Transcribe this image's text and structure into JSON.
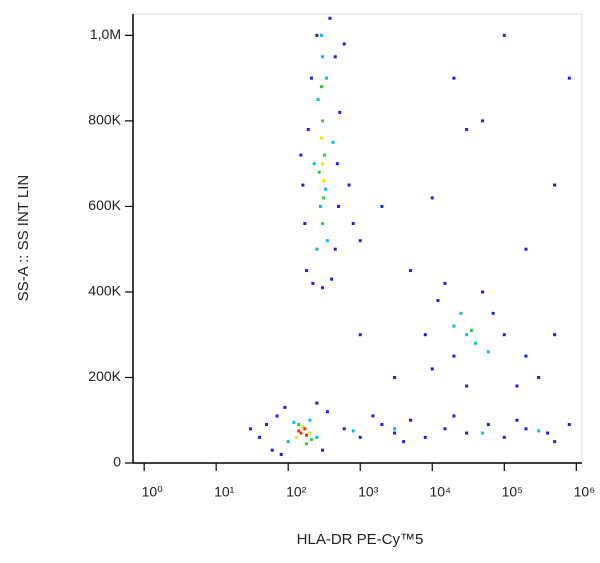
{
  "chart_data": {
    "type": "scatter",
    "x_label": "HLA-DR PE-Cy™5",
    "y_label": "SS-A :: SS INT LIN",
    "xscale": "log",
    "xlim": [
      0.7,
      1200000
    ],
    "ylim": [
      0,
      1050000
    ],
    "xticks": [
      {
        "value": 1,
        "label": "10⁰"
      },
      {
        "value": 10,
        "label": "10¹"
      },
      {
        "value": 100,
        "label": "10²"
      },
      {
        "value": 1000,
        "label": "10³"
      },
      {
        "value": 10000,
        "label": "10⁴"
      },
      {
        "value": 100000,
        "label": "10⁵"
      },
      {
        "value": 1000000,
        "label": "10⁶"
      }
    ],
    "yticks": [
      {
        "value": 0,
        "label": "0"
      },
      {
        "value": 200000,
        "label": "200K"
      },
      {
        "value": 400000,
        "label": "400K"
      },
      {
        "value": 600000,
        "label": "600K"
      },
      {
        "value": 800000,
        "label": "800K"
      },
      {
        "value": 1000000,
        "label": "1,0M"
      }
    ],
    "series": [
      {
        "color": "#1e1ee6",
        "x": [
          180,
          220,
          400,
          450,
          170,
          500,
          160,
          480,
          190,
          520,
          210,
          450,
          250,
          380,
          600,
          150,
          700,
          800,
          1000,
          300,
          40,
          60,
          70,
          90,
          50,
          300,
          350,
          30,
          80,
          250,
          600,
          1000,
          2000,
          3000,
          5000,
          8000,
          15000,
          30000,
          60000,
          100000,
          200000,
          400000,
          800000,
          1500,
          4000,
          20000,
          150000,
          500000,
          8000,
          12000,
          15000,
          20000,
          50000,
          100000,
          200000,
          300000,
          150000,
          500000,
          30000,
          10000,
          70000,
          2000,
          5000,
          20000,
          30000,
          100000,
          500000,
          50000,
          1000,
          3000,
          800000,
          10000,
          200000
        ],
        "values": [
          450000,
          420000,
          430000,
          500000,
          560000,
          600000,
          650000,
          700000,
          780000,
          820000,
          900000,
          950000,
          1000000,
          1040000,
          980000,
          720000,
          650000,
          560000,
          520000,
          410000,
          60000,
          30000,
          110000,
          130000,
          90000,
          30000,
          120000,
          80000,
          20000,
          140000,
          80000,
          60000,
          90000,
          70000,
          100000,
          60000,
          80000,
          70000,
          90000,
          60000,
          80000,
          70000,
          90000,
          110000,
          50000,
          110000,
          100000,
          50000,
          300000,
          380000,
          420000,
          250000,
          400000,
          300000,
          250000,
          200000,
          180000,
          300000,
          180000,
          220000,
          350000,
          600000,
          450000,
          900000,
          780000,
          1000000,
          650000,
          800000,
          300000,
          200000,
          900000,
          620000,
          500000
        ]
      },
      {
        "color": "#00c0f0",
        "x": [
          250,
          350,
          280,
          330,
          260,
          340,
          300,
          290,
          230,
          420,
          100,
          200,
          250,
          120,
          800,
          3000,
          50000,
          300000,
          20000,
          30000,
          40000,
          25000,
          60000
        ],
        "values": [
          500000,
          520000,
          600000,
          640000,
          850000,
          900000,
          950000,
          1000000,
          700000,
          750000,
          50000,
          100000,
          60000,
          95000,
          75000,
          80000,
          70000,
          75000,
          320000,
          300000,
          280000,
          350000,
          260000
        ]
      },
      {
        "color": "#30d030",
        "x": [
          300,
          270,
          320,
          300,
          290,
          310,
          140,
          210,
          180,
          35000
        ],
        "values": [
          560000,
          680000,
          720000,
          800000,
          880000,
          620000,
          90000,
          55000,
          45000,
          310000
        ]
      },
      {
        "color": "#e8e800",
        "x": [
          300,
          290,
          310,
          160,
          200,
          130
        ],
        "values": [
          700000,
          760000,
          660000,
          85000,
          70000,
          60000
        ]
      },
      {
        "color": "#ff2a00",
        "x": [
          150,
          180,
          140,
          170
        ],
        "values": [
          70000,
          65000,
          75000,
          80000
        ]
      }
    ]
  }
}
